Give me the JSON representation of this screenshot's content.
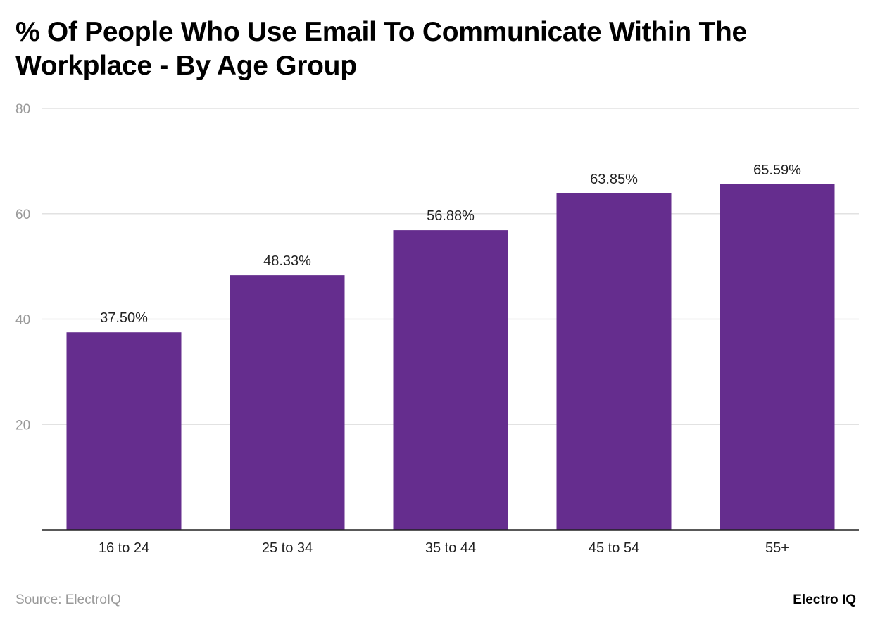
{
  "chart_data": {
    "type": "bar",
    "title": "% Of People Who Use Email To Communicate Within The Workplace - By Age Group",
    "categories": [
      "16 to 24",
      "25 to 34",
      "35 to 44",
      "45 to 54",
      "55+"
    ],
    "values": [
      37.5,
      48.33,
      56.88,
      63.85,
      65.59
    ],
    "data_labels": [
      "37.50%",
      "48.33%",
      "56.88%",
      "63.85%",
      "65.59%"
    ],
    "xlabel": "",
    "ylabel": "",
    "ylim": [
      0,
      80
    ],
    "yticks": [
      20,
      40,
      60,
      80
    ],
    "grid": true,
    "bar_color": "#652d8e"
  },
  "footer": {
    "source": "Source: ElectroIQ",
    "logo": "Electro IQ"
  }
}
